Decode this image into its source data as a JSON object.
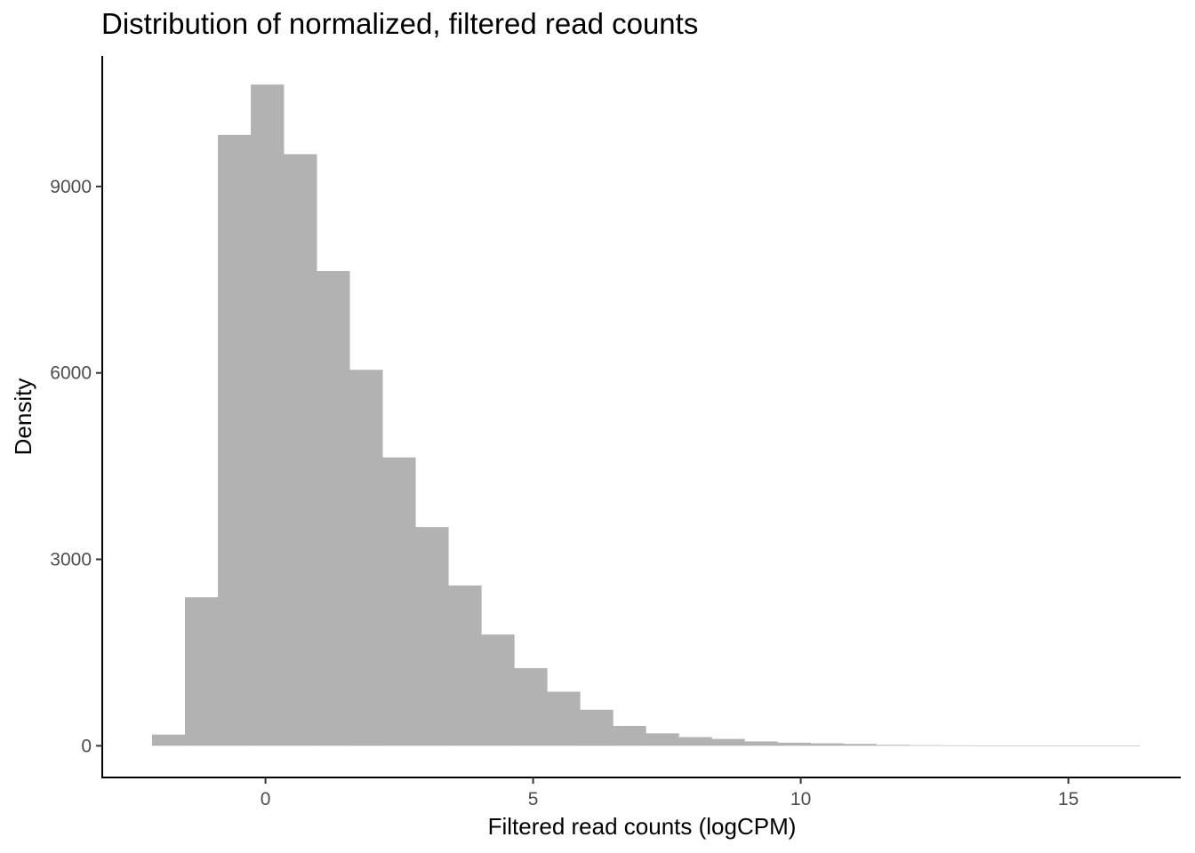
{
  "chart_data": {
    "type": "bar",
    "title": "Distribution of normalized, filtered read counts",
    "xlabel": "Filtered read counts (logCPM)",
    "ylabel": "Density",
    "xlim": [
      -3.05,
      17.1
    ],
    "ylim": [
      -510,
      11100
    ],
    "x_ticks": [
      0,
      5,
      10,
      15
    ],
    "y_ticks": [
      0,
      3000,
      6000,
      9000
    ],
    "bin_width": 0.615,
    "bar_color": "#b2b2b2",
    "grid": false,
    "legend": "none",
    "bins": [
      {
        "x0": -2.12,
        "value": 180
      },
      {
        "x0": -1.505,
        "value": 2390
      },
      {
        "x0": -0.89,
        "value": 9830
      },
      {
        "x0": -0.275,
        "value": 10640
      },
      {
        "x0": 0.34,
        "value": 9520
      },
      {
        "x0": 0.955,
        "value": 7640
      },
      {
        "x0": 1.57,
        "value": 6050
      },
      {
        "x0": 2.185,
        "value": 4640
      },
      {
        "x0": 2.8,
        "value": 3520
      },
      {
        "x0": 3.415,
        "value": 2580
      },
      {
        "x0": 4.03,
        "value": 1790
      },
      {
        "x0": 4.645,
        "value": 1250
      },
      {
        "x0": 5.26,
        "value": 870
      },
      {
        "x0": 5.875,
        "value": 580
      },
      {
        "x0": 6.49,
        "value": 320
      },
      {
        "x0": 7.105,
        "value": 200
      },
      {
        "x0": 7.72,
        "value": 140
      },
      {
        "x0": 8.335,
        "value": 110
      },
      {
        "x0": 8.95,
        "value": 70
      },
      {
        "x0": 9.565,
        "value": 50
      },
      {
        "x0": 10.18,
        "value": 40
      },
      {
        "x0": 10.795,
        "value": 30
      },
      {
        "x0": 11.41,
        "value": 15
      },
      {
        "x0": 12.025,
        "value": 10
      },
      {
        "x0": 12.64,
        "value": 6
      },
      {
        "x0": 13.255,
        "value": 4
      },
      {
        "x0": 13.87,
        "value": 2
      },
      {
        "x0": 14.485,
        "value": 1
      },
      {
        "x0": 15.1,
        "value": 1
      },
      {
        "x0": 15.715,
        "value": 1
      }
    ]
  }
}
